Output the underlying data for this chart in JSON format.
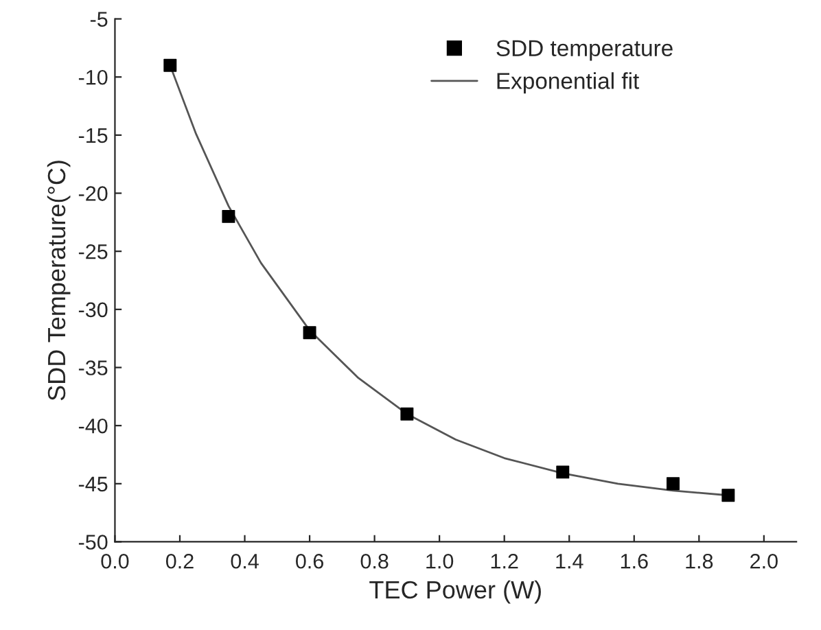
{
  "chart_data": {
    "type": "scatter",
    "xlabel": "TEC Power (W)",
    "ylabel": "SDD Temperature(°C)",
    "xlim": [
      0.0,
      2.1
    ],
    "xticks": [
      {
        "value": 0.0,
        "label": "0.0"
      },
      0.2,
      0.4,
      0.6,
      0.8,
      {
        "value": 1.0,
        "label": "1.0"
      },
      1.2,
      1.4,
      1.6,
      1.8,
      {
        "value": 2.0,
        "label": "2.0"
      }
    ],
    "ylim": [
      -50,
      -5
    ],
    "yticks": [
      -50,
      -45,
      -40,
      -35,
      -30,
      -25,
      -20,
      -15,
      -10,
      -5
    ],
    "grid": false,
    "legend": "top right",
    "series": [
      {
        "name": "SDD temperature",
        "marker": "square",
        "color": "#000000",
        "x": [
          0.17,
          0.35,
          0.6,
          0.9,
          1.38,
          1.72,
          1.89
        ],
        "values": [
          -9,
          -22,
          -32,
          -39,
          -44,
          -45,
          -46
        ]
      },
      {
        "name": "Exponential fit",
        "type": "line",
        "marker": "none",
        "line_style": "solid",
        "color": "#555555",
        "x": [
          0.17,
          0.25,
          0.35,
          0.45,
          0.6,
          0.75,
          0.9,
          1.05,
          1.2,
          1.38,
          1.55,
          1.72,
          1.89
        ],
        "values": [
          -9.0,
          -14.9,
          -21.1,
          -26.0,
          -31.8,
          -35.9,
          -39.0,
          -41.2,
          -42.8,
          -44.1,
          -45.0,
          -45.6,
          -46.0
        ]
      }
    ]
  }
}
